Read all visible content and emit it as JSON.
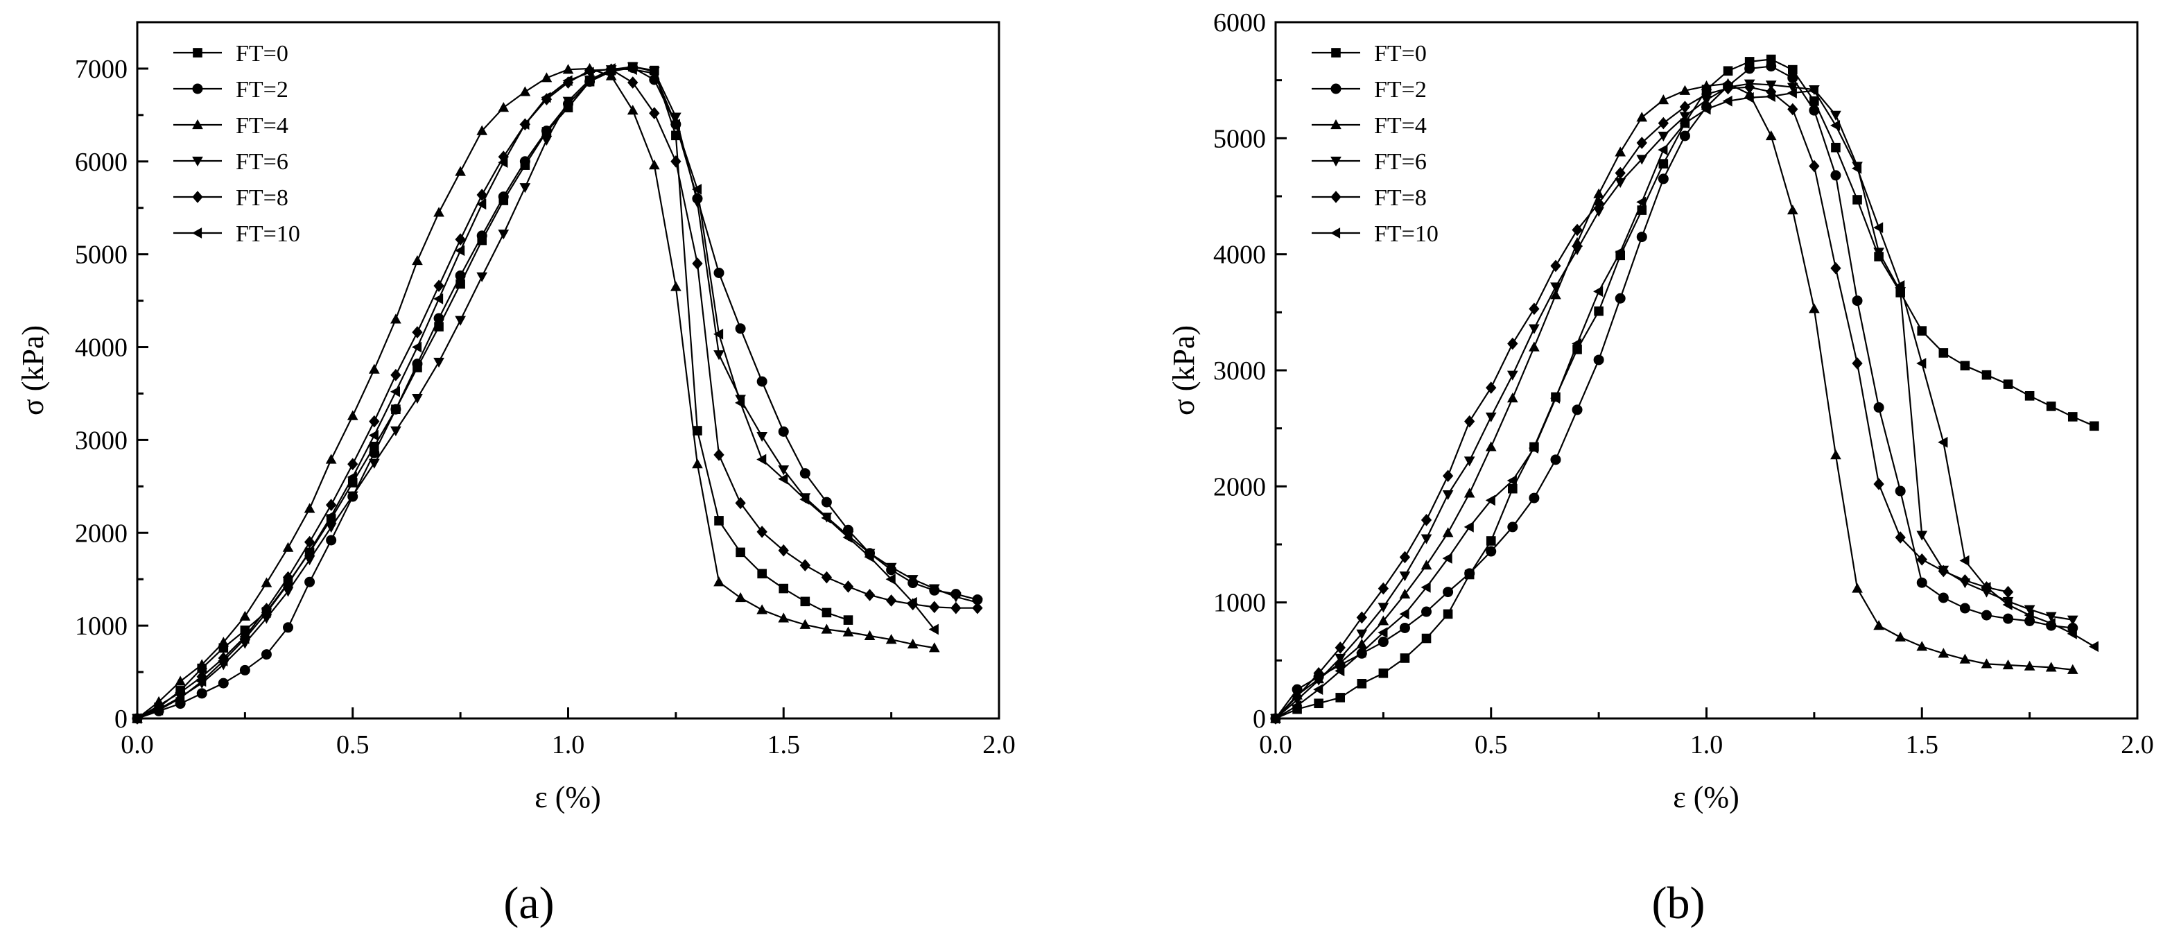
{
  "chart_data": [
    {
      "type": "line",
      "panel_label": "(a)",
      "xlabel": "ε (%)",
      "ylabel": "σ (kPa)",
      "xlim": [
        0,
        2.0
      ],
      "ylim": [
        0,
        7500
      ],
      "xticks": [
        0,
        0.5,
        1.0,
        1.5,
        2.0
      ],
      "xtick_labels": [
        "0.0",
        "0.5",
        "1.0",
        "1.5",
        "2.0"
      ],
      "yticks": [
        0,
        1000,
        2000,
        3000,
        4000,
        5000,
        6000,
        7000
      ],
      "ytick_labels": [
        "0",
        "1000",
        "2000",
        "3000",
        "4000",
        "5000",
        "6000",
        "7000"
      ],
      "legend_position": "top-left",
      "series": [
        {
          "name": "FT=0",
          "marker": "square",
          "x": [
            0,
            0.05,
            0.1,
            0.15,
            0.2,
            0.25,
            0.3,
            0.35,
            0.4,
            0.45,
            0.5,
            0.55,
            0.6,
            0.65,
            0.7,
            0.75,
            0.8,
            0.85,
            0.9,
            0.95,
            1.0,
            1.05,
            1.1,
            1.15,
            1.2,
            1.25,
            1.3,
            1.35,
            1.4,
            1.45,
            1.5,
            1.55,
            1.6,
            1.65
          ],
          "y": [
            0,
            120,
            300,
            540,
            760,
            950,
            1150,
            1460,
            1790,
            2150,
            2540,
            2930,
            3330,
            3780,
            4220,
            4680,
            5150,
            5580,
            5960,
            6320,
            6580,
            6860,
            6980,
            7020,
            6980,
            6280,
            3100,
            2130,
            1790,
            1560,
            1400,
            1260,
            1140,
            1060
          ]
        },
        {
          "name": "FT=2",
          "marker": "circle",
          "x": [
            0,
            0.05,
            0.1,
            0.15,
            0.2,
            0.25,
            0.3,
            0.35,
            0.4,
            0.45,
            0.5,
            0.55,
            0.6,
            0.65,
            0.7,
            0.75,
            0.8,
            0.85,
            0.9,
            0.95,
            1.0,
            1.05,
            1.1,
            1.15,
            1.2,
            1.25,
            1.3,
            1.35,
            1.4,
            1.45,
            1.5,
            1.55,
            1.6,
            1.65,
            1.7,
            1.75,
            1.8,
            1.85,
            1.9,
            1.95
          ],
          "y": [
            0,
            80,
            160,
            270,
            380,
            520,
            690,
            980,
            1470,
            1920,
            2390,
            2860,
            3330,
            3820,
            4310,
            4770,
            5200,
            5620,
            6000,
            6330,
            6620,
            6860,
            6970,
            7010,
            6880,
            6400,
            5600,
            4800,
            4200,
            3630,
            3090,
            2640,
            2330,
            2030,
            1780,
            1600,
            1460,
            1380,
            1340,
            1280
          ]
        },
        {
          "name": "FT=4",
          "marker": "triangle-up",
          "x": [
            0,
            0.05,
            0.1,
            0.15,
            0.2,
            0.25,
            0.3,
            0.35,
            0.4,
            0.45,
            0.5,
            0.55,
            0.6,
            0.65,
            0.7,
            0.75,
            0.8,
            0.85,
            0.9,
            0.95,
            1.0,
            1.05,
            1.1,
            1.15,
            1.2,
            1.25,
            1.3,
            1.35,
            1.4,
            1.45,
            1.5,
            1.55,
            1.6,
            1.65,
            1.7,
            1.75,
            1.8,
            1.85
          ],
          "y": [
            0,
            180,
            400,
            580,
            820,
            1100,
            1460,
            1840,
            2260,
            2790,
            3260,
            3760,
            4300,
            4930,
            5450,
            5890,
            6330,
            6580,
            6750,
            6900,
            6990,
            7000,
            6920,
            6550,
            5960,
            4650,
            2740,
            1470,
            1300,
            1170,
            1080,
            1010,
            960,
            930,
            890,
            850,
            800,
            760
          ]
        },
        {
          "name": "FT=6",
          "marker": "triangle-down",
          "x": [
            0,
            0.05,
            0.1,
            0.15,
            0.2,
            0.25,
            0.3,
            0.35,
            0.4,
            0.45,
            0.5,
            0.55,
            0.6,
            0.65,
            0.7,
            0.75,
            0.8,
            0.85,
            0.9,
            0.95,
            1.0,
            1.05,
            1.1,
            1.15,
            1.2,
            1.25,
            1.3,
            1.35,
            1.4,
            1.45,
            1.5,
            1.55,
            1.6,
            1.65,
            1.7,
            1.75,
            1.8,
            1.85,
            1.9,
            1.95
          ],
          "y": [
            0,
            100,
            230,
            380,
            580,
            810,
            1080,
            1370,
            1710,
            2060,
            2400,
            2750,
            3100,
            3450,
            3840,
            4290,
            4760,
            5220,
            5720,
            6230,
            6650,
            6880,
            6990,
            7020,
            6970,
            6480,
            5560,
            3920,
            3440,
            3040,
            2680,
            2380,
            2170,
            1970,
            1780,
            1630,
            1500,
            1400,
            1310,
            1250
          ]
        },
        {
          "name": "FT=8",
          "marker": "diamond",
          "x": [
            0,
            0.05,
            0.1,
            0.15,
            0.2,
            0.25,
            0.3,
            0.35,
            0.4,
            0.45,
            0.5,
            0.55,
            0.6,
            0.65,
            0.7,
            0.75,
            0.8,
            0.85,
            0.9,
            0.95,
            1.0,
            1.05,
            1.1,
            1.15,
            1.2,
            1.25,
            1.3,
            1.35,
            1.4,
            1.45,
            1.5,
            1.55,
            1.6,
            1.65,
            1.7,
            1.75,
            1.8,
            1.85,
            1.9,
            1.95
          ],
          "y": [
            0,
            140,
            280,
            450,
            650,
            880,
            1180,
            1520,
            1900,
            2300,
            2740,
            3200,
            3700,
            4160,
            4660,
            5160,
            5640,
            6050,
            6400,
            6670,
            6850,
            6980,
            6990,
            6850,
            6520,
            6000,
            4900,
            2840,
            2320,
            2010,
            1810,
            1650,
            1520,
            1420,
            1330,
            1270,
            1230,
            1200,
            1190,
            1190
          ]
        },
        {
          "name": "FT=10",
          "marker": "triangle-left",
          "x": [
            0,
            0.05,
            0.1,
            0.15,
            0.2,
            0.25,
            0.3,
            0.35,
            0.4,
            0.45,
            0.5,
            0.55,
            0.6,
            0.65,
            0.7,
            0.75,
            0.8,
            0.85,
            0.9,
            0.95,
            1.0,
            1.05,
            1.1,
            1.15,
            1.2,
            1.25,
            1.3,
            1.35,
            1.4,
            1.45,
            1.5,
            1.55,
            1.6,
            1.65,
            1.7,
            1.75,
            1.8,
            1.85
          ],
          "y": [
            0,
            90,
            220,
            400,
            620,
            860,
            1140,
            1450,
            1800,
            2180,
            2600,
            3050,
            3520,
            4000,
            4520,
            5040,
            5540,
            5990,
            6400,
            6690,
            6870,
            6960,
            7000,
            6990,
            6950,
            6400,
            5700,
            4140,
            3400,
            2790,
            2580,
            2360,
            2160,
            1950,
            1740,
            1500,
            1250,
            960
          ]
        }
      ]
    },
    {
      "type": "line",
      "panel_label": "(b)",
      "xlabel": "ε (%)",
      "ylabel": "σ (kPa)",
      "xlim": [
        0,
        2.0
      ],
      "ylim": [
        0,
        6000
      ],
      "xticks": [
        0,
        0.5,
        1.0,
        1.5,
        2.0
      ],
      "xtick_labels": [
        "0.0",
        "0.5",
        "1.0",
        "1.5",
        "2.0"
      ],
      "yticks": [
        0,
        1000,
        2000,
        3000,
        4000,
        5000,
        6000
      ],
      "ytick_labels": [
        "0",
        "1000",
        "2000",
        "3000",
        "4000",
        "5000",
        "6000"
      ],
      "legend_position": "top-left",
      "series": [
        {
          "name": "FT=0",
          "marker": "square",
          "x": [
            0,
            0.05,
            0.1,
            0.15,
            0.2,
            0.25,
            0.3,
            0.35,
            0.4,
            0.45,
            0.5,
            0.55,
            0.6,
            0.65,
            0.7,
            0.75,
            0.8,
            0.85,
            0.9,
            0.95,
            1.0,
            1.05,
            1.1,
            1.15,
            1.2,
            1.25,
            1.3,
            1.35,
            1.4,
            1.45,
            1.5,
            1.55,
            1.6,
            1.65,
            1.7,
            1.75,
            1.8,
            1.85,
            1.9
          ],
          "y": [
            0,
            80,
            130,
            180,
            300,
            390,
            520,
            690,
            900,
            1240,
            1530,
            1980,
            2340,
            2770,
            3180,
            3510,
            3990,
            4380,
            4780,
            5130,
            5420,
            5580,
            5660,
            5680,
            5590,
            5320,
            4920,
            4470,
            3980,
            3670,
            3340,
            3150,
            3040,
            2960,
            2880,
            2780,
            2690,
            2600,
            2520
          ]
        },
        {
          "name": "FT=2",
          "marker": "circle",
          "x": [
            0,
            0.05,
            0.1,
            0.15,
            0.2,
            0.25,
            0.3,
            0.35,
            0.4,
            0.45,
            0.5,
            0.55,
            0.6,
            0.65,
            0.7,
            0.75,
            0.8,
            0.85,
            0.9,
            0.95,
            1.0,
            1.05,
            1.1,
            1.15,
            1.2,
            1.25,
            1.3,
            1.35,
            1.4,
            1.45,
            1.5,
            1.55,
            1.6,
            1.65,
            1.7,
            1.75,
            1.8,
            1.85
          ],
          "y": [
            0,
            250,
            360,
            460,
            560,
            660,
            780,
            920,
            1090,
            1250,
            1440,
            1650,
            1900,
            2230,
            2660,
            3090,
            3620,
            4150,
            4650,
            5020,
            5270,
            5450,
            5600,
            5620,
            5520,
            5240,
            4680,
            3600,
            2680,
            1960,
            1170,
            1040,
            950,
            890,
            860,
            840,
            800,
            780
          ]
        },
        {
          "name": "FT=4",
          "marker": "triangle-up",
          "x": [
            0,
            0.05,
            0.1,
            0.15,
            0.2,
            0.25,
            0.3,
            0.35,
            0.4,
            0.45,
            0.5,
            0.55,
            0.6,
            0.65,
            0.7,
            0.75,
            0.8,
            0.85,
            0.9,
            0.95,
            1.0,
            1.05,
            1.1,
            1.15,
            1.2,
            1.25,
            1.3,
            1.35,
            1.4,
            1.45,
            1.5,
            1.55,
            1.6,
            1.65,
            1.7,
            1.75,
            1.8,
            1.85
          ],
          "y": [
            0,
            200,
            340,
            480,
            640,
            840,
            1070,
            1320,
            1600,
            1940,
            2340,
            2760,
            3200,
            3650,
            4100,
            4520,
            4880,
            5180,
            5330,
            5410,
            5450,
            5470,
            5380,
            5020,
            4380,
            3530,
            2270,
            1120,
            800,
            700,
            620,
            560,
            510,
            470,
            460,
            450,
            440,
            420
          ]
        },
        {
          "name": "FT=6",
          "marker": "triangle-down",
          "x": [
            0,
            0.05,
            0.1,
            0.15,
            0.2,
            0.25,
            0.3,
            0.35,
            0.4,
            0.45,
            0.5,
            0.55,
            0.6,
            0.65,
            0.7,
            0.75,
            0.8,
            0.85,
            0.9,
            0.95,
            1.0,
            1.05,
            1.1,
            1.15,
            1.2,
            1.25,
            1.3,
            1.35,
            1.4,
            1.45,
            1.5,
            1.55,
            1.6,
            1.65,
            1.7,
            1.75,
            1.8,
            1.85
          ],
          "y": [
            0,
            160,
            330,
            520,
            730,
            960,
            1230,
            1550,
            1930,
            2220,
            2600,
            2960,
            3360,
            3720,
            4040,
            4370,
            4620,
            4820,
            5020,
            5190,
            5330,
            5440,
            5470,
            5460,
            5440,
            5420,
            5200,
            4760,
            4020,
            3680,
            1580,
            1280,
            1170,
            1090,
            1010,
            940,
            880,
            850
          ]
        },
        {
          "name": "FT=8",
          "marker": "diamond",
          "x": [
            0,
            0.05,
            0.1,
            0.15,
            0.2,
            0.25,
            0.3,
            0.35,
            0.4,
            0.45,
            0.5,
            0.55,
            0.6,
            0.65,
            0.7,
            0.75,
            0.8,
            0.85,
            0.9,
            0.95,
            1.0,
            1.05,
            1.1,
            1.15,
            1.2,
            1.25,
            1.3,
            1.35,
            1.4,
            1.45,
            1.5,
            1.55,
            1.6,
            1.65,
            1.7
          ],
          "y": [
            0,
            190,
            390,
            610,
            870,
            1120,
            1390,
            1710,
            2090,
            2560,
            2850,
            3230,
            3530,
            3900,
            4210,
            4440,
            4700,
            4960,
            5130,
            5270,
            5380,
            5430,
            5440,
            5400,
            5250,
            4760,
            3880,
            3060,
            2020,
            1560,
            1370,
            1270,
            1190,
            1130,
            1090
          ]
        },
        {
          "name": "FT=10",
          "marker": "triangle-left",
          "x": [
            0,
            0.05,
            0.1,
            0.15,
            0.2,
            0.25,
            0.3,
            0.35,
            0.4,
            0.45,
            0.5,
            0.55,
            0.6,
            0.65,
            0.7,
            0.75,
            0.8,
            0.85,
            0.9,
            0.95,
            1.0,
            1.05,
            1.1,
            1.15,
            1.2,
            1.25,
            1.3,
            1.35,
            1.4,
            1.45,
            1.5,
            1.55,
            1.6,
            1.65,
            1.7,
            1.75,
            1.8,
            1.85,
            1.9
          ],
          "y": [
            0,
            110,
            250,
            410,
            570,
            740,
            900,
            1130,
            1380,
            1650,
            1880,
            2050,
            2330,
            2760,
            3230,
            3680,
            4020,
            4450,
            4900,
            5130,
            5250,
            5320,
            5350,
            5360,
            5390,
            5410,
            5110,
            4740,
            4230,
            3730,
            3060,
            2380,
            1360,
            1130,
            980,
            890,
            820,
            730,
            620
          ]
        }
      ]
    }
  ]
}
